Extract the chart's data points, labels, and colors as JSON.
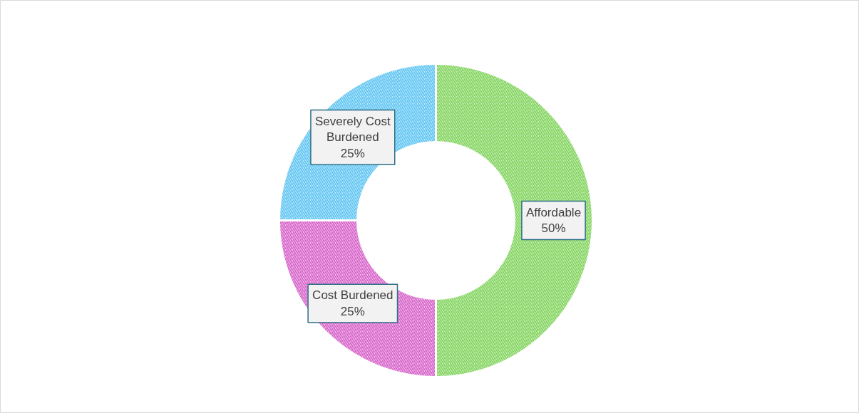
{
  "chart_data": {
    "type": "donut",
    "categories": [
      "Affordable",
      "Cost Burdened",
      "Severely Cost Burdened"
    ],
    "values": [
      50,
      25,
      25
    ],
    "colors": [
      "#7fd35a",
      "#d65fc8",
      "#5cc4f2"
    ],
    "value_labels": [
      "50%",
      "25%",
      "25%"
    ]
  }
}
